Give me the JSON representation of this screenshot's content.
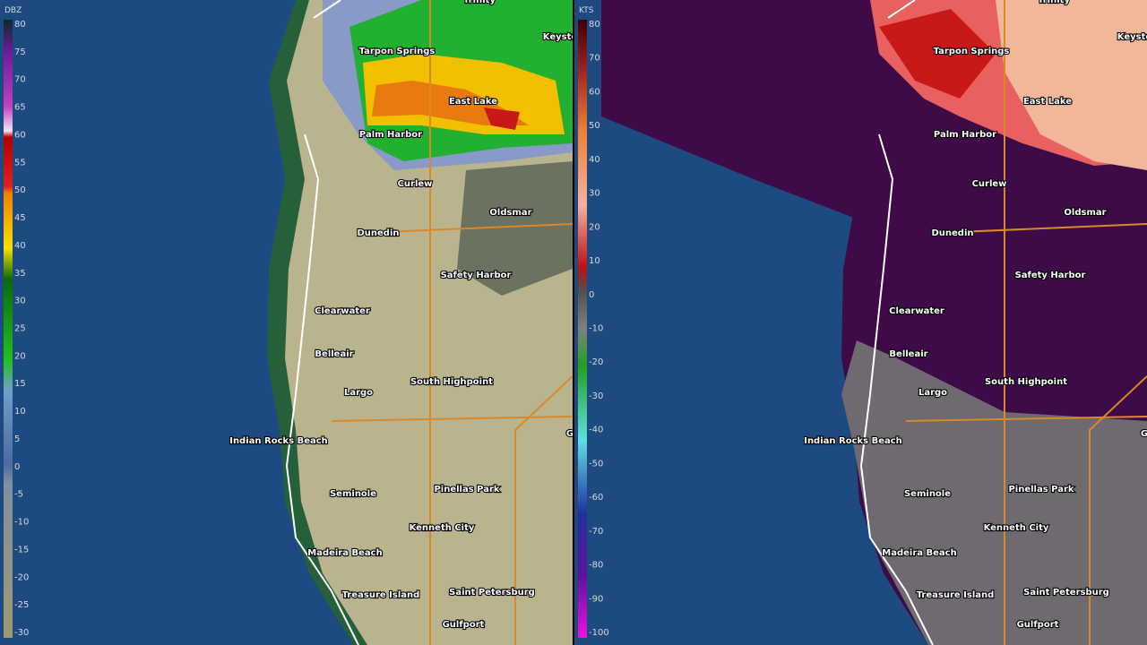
{
  "panels": [
    {
      "unit": "DBZ",
      "ticks": [
        80,
        75,
        70,
        65,
        60,
        55,
        50,
        45,
        40,
        35,
        30,
        25,
        20,
        15,
        10,
        5,
        0,
        -5,
        -10,
        -15,
        -20,
        -25,
        -30
      ]
    },
    {
      "unit": "KTS",
      "ticks": [
        80,
        70,
        60,
        50,
        40,
        30,
        20,
        10,
        0,
        -10,
        -20,
        -30,
        -40,
        -50,
        -60,
        -70,
        -80,
        -90,
        -100
      ]
    }
  ],
  "places": [
    "Trinity",
    "Keysto",
    "Tarpon Springs",
    "East Lake",
    "Palm Harbor",
    "Curlew",
    "Oldsmar",
    "Dunedin",
    "Safety Harbor",
    "Clearwater",
    "Belleair",
    "Largo",
    "South Highpoint",
    "Indian Rocks Beach",
    "Seminole",
    "Pinellas Park",
    "Kenneth City",
    "Madeira Beach",
    "Treasure Island",
    "Saint Petersburg",
    "Gulfport",
    "G"
  ]
}
